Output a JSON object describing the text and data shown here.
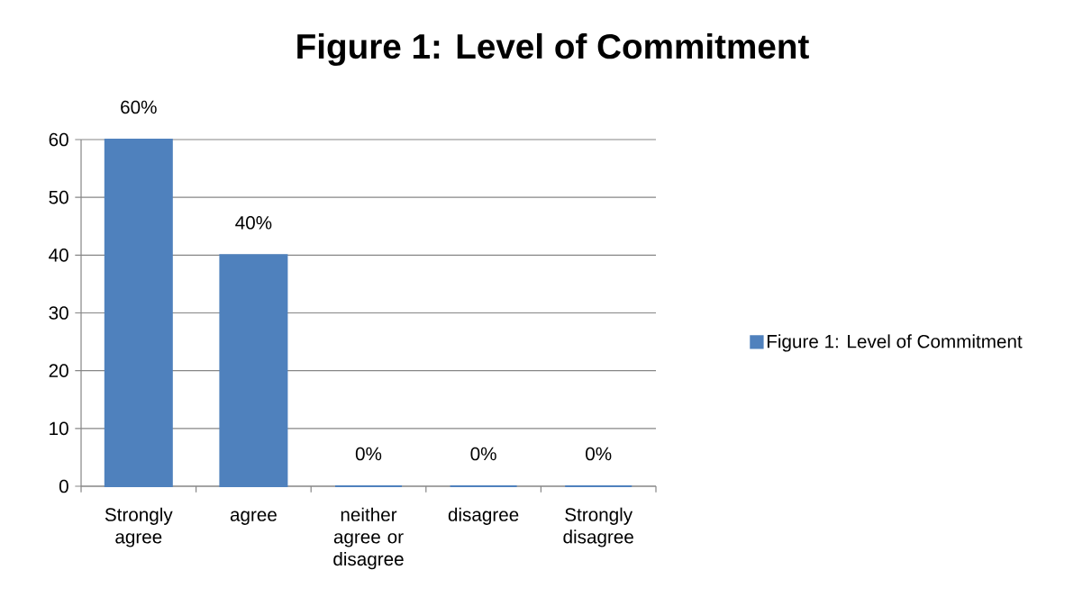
{
  "chart_data": {
    "type": "bar",
    "title": "Figure 1: Level of Commitment",
    "categories": [
      "Strongly agree",
      "agree",
      "neither agree or disagree",
      "disagree",
      "Strongly disagree"
    ],
    "series": [
      {
        "name": "Figure 1: Level of Commitment",
        "color": "#4f81bd",
        "values": [
          60,
          40,
          0,
          0,
          0
        ],
        "value_labels": [
          "60%",
          "40%",
          "0%",
          "0%",
          "0%"
        ]
      }
    ],
    "ylim": [
      0,
      60
    ],
    "yticks": [
      0,
      10,
      20,
      30,
      40,
      50,
      60
    ],
    "grid": "y",
    "legend": "right"
  }
}
